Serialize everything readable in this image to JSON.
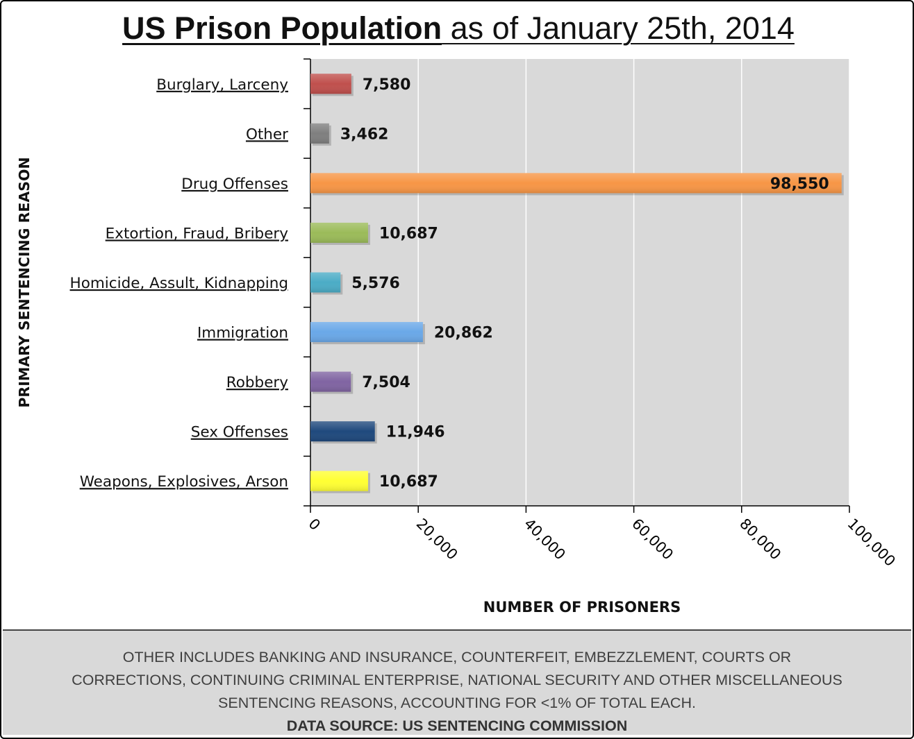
{
  "title": {
    "bold_part": "US Prison Population",
    "rest_part": " as of January 25th, 2014"
  },
  "chart_data": {
    "type": "bar",
    "orientation": "horizontal",
    "categories": [
      "Burglary, Larceny",
      "Other",
      "Drug Offenses",
      "Extortion, Fraud, Bribery",
      "Homicide, Assult, Kidnapping",
      "Immigration",
      "Robbery",
      "Sex Offenses",
      "Weapons, Explosives, Arson"
    ],
    "values": [
      7580,
      3462,
      98550,
      10687,
      5576,
      20862,
      7504,
      11946,
      10687
    ],
    "value_labels": [
      "7,580",
      "3,462",
      "98,550",
      "10,687",
      "5,576",
      "20,862",
      "7,504",
      "11,946",
      "10,687"
    ],
    "colors": [
      "#c0504d",
      "#7f7f7f",
      "#f79646",
      "#9bbb59",
      "#4bacc6",
      "#6aa8e8",
      "#8064a2",
      "#1f497d",
      "#ffff33"
    ],
    "xlabel": "NUMBER OF PRISONERS",
    "ylabel": "PRIMARY SENTENCING REASON",
    "xlim": [
      0,
      100000
    ],
    "x_ticks": [
      0,
      20000,
      40000,
      60000,
      80000,
      100000
    ],
    "x_tick_labels": [
      "0",
      "20,000",
      "40,000",
      "60,000",
      "80,000",
      "100,000"
    ],
    "grid": "vertical",
    "plot_background": "#d9d9d9",
    "gridline_color": "#ffffff"
  },
  "footnote": {
    "lines": [
      "OTHER INCLUDES BANKING AND INSURANCE, COUNTERFEIT, EMBEZZLEMENT, COURTS OR",
      "CORRECTIONS, CONTINUING CRIMINAL ENTERPRISE, NATIONAL SECURITY AND OTHER MISCELLANEOUS",
      "SENTENCING REASONS, ACCOUNTING FOR <1% OF TOTAL EACH."
    ],
    "source": "DATA SOURCE: US SENTENCING COMMISSION"
  }
}
